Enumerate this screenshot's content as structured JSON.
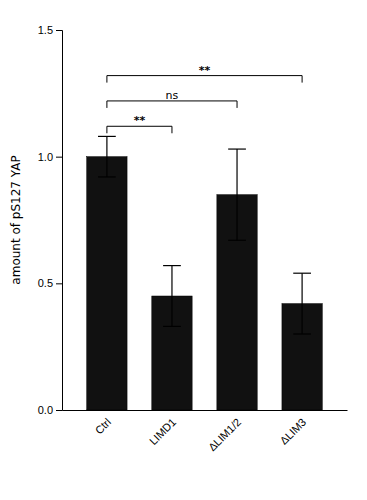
{
  "chart_data": {
    "type": "bar",
    "categories": [
      "Ctrl",
      "LIMD1",
      "ΔLIM1/2",
      "ΔLIM3"
    ],
    "values": [
      1.0,
      0.45,
      0.85,
      0.42
    ],
    "errors": [
      0.08,
      0.12,
      0.18,
      0.12
    ],
    "color": "#111111",
    "ylabel": "amount of pS127 YAP",
    "ylim": [
      0,
      1.5
    ],
    "yticks": [
      {
        "value": 0,
        "label": "0.0"
      },
      0.5,
      {
        "value": 1,
        "label": "1.0"
      },
      1.5
    ],
    "grid": false,
    "significance": [
      {
        "x1": 0,
        "x2": 1,
        "y": 1.12,
        "label": "**"
      },
      {
        "x1": 0,
        "x2": 2,
        "y": 1.22,
        "label": "ns"
      },
      {
        "x1": 0,
        "x2": 3,
        "y": 1.32,
        "label": "**"
      }
    ]
  }
}
